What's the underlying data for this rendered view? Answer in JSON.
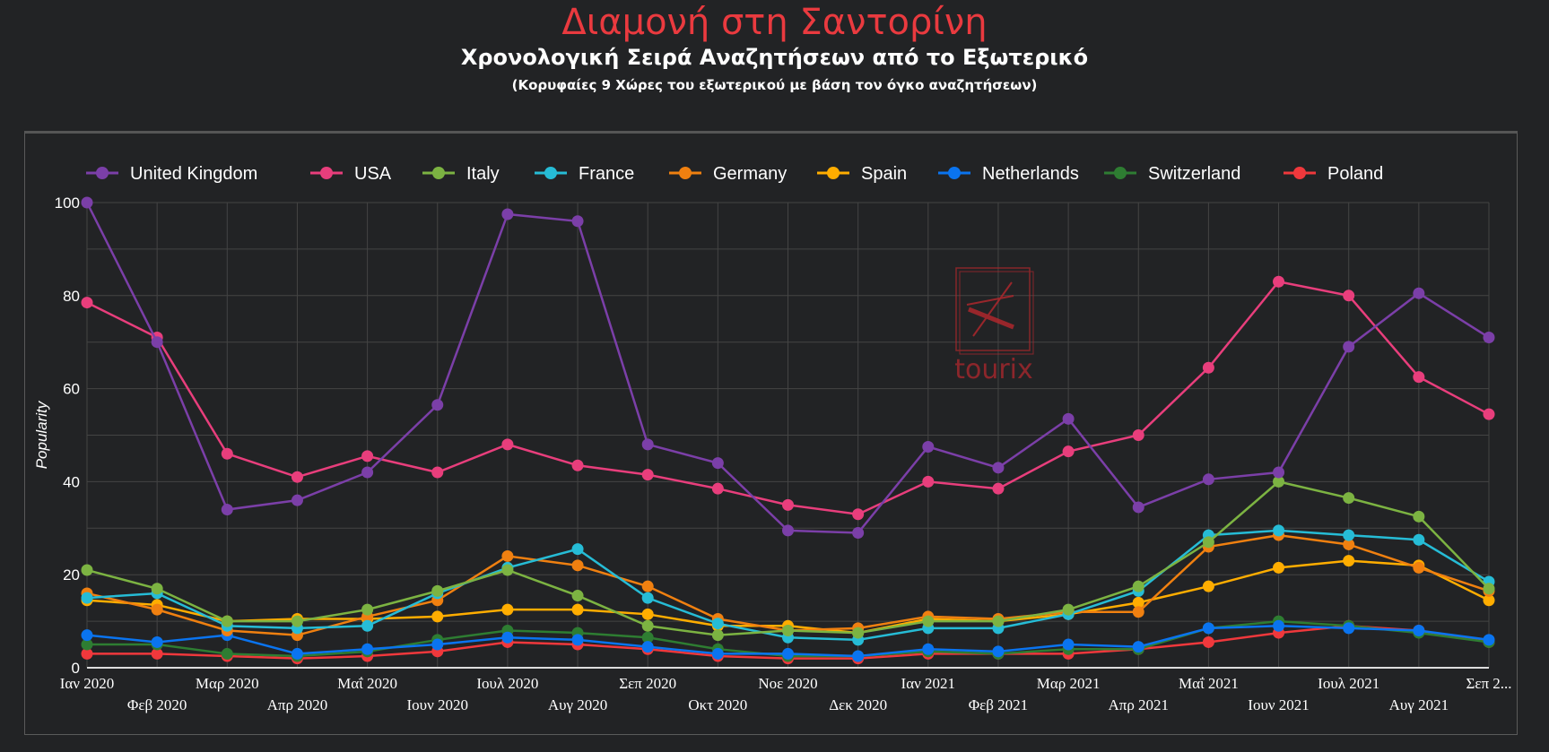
{
  "title": "Διαμονή στη Σαντορίνη",
  "subtitle": "Χρονολογική Σειρά Αναζητήσεων από το Εξωτερικό",
  "note": "(Κορυφαίες 9 Χώρες του εξωτερικού με βάση τον όγκο αναζητήσεων)",
  "watermark": "tourix",
  "chart_data": {
    "type": "line",
    "ylabel": "Popularity",
    "ylim": [
      0,
      100
    ],
    "yticks": [
      0,
      20,
      40,
      60,
      80,
      100
    ],
    "grid": true,
    "legend_position": "top",
    "categories": [
      "Ιαν 2020",
      "Φεβ 2020",
      "Μαρ 2020",
      "Απρ 2020",
      "Μαΐ 2020",
      "Ιουν 2020",
      "Ιουλ 2020",
      "Αυγ 2020",
      "Σεπ 2020",
      "Οκτ 2020",
      "Νοε 2020",
      "Δεκ 2020",
      "Ιαν 2021",
      "Φεβ 2021",
      "Μαρ 2021",
      "Απρ 2021",
      "Μαΐ 2021",
      "Ιουν 2021",
      "Ιουλ 2021",
      "Αυγ 2021",
      "Σεπ 2..."
    ],
    "series": [
      {
        "name": "United Kingdom",
        "color": "#7b3fa8",
        "values": [
          100,
          70,
          34,
          36,
          42,
          56.5,
          97.5,
          96,
          48,
          44,
          29.5,
          29,
          47.5,
          43,
          53.5,
          34.5,
          40.5,
          42,
          69,
          80.5,
          71
        ]
      },
      {
        "name": "USA",
        "color": "#e83e7c",
        "values": [
          78.5,
          71,
          46,
          41,
          45.5,
          42,
          48,
          43.5,
          41.5,
          38.5,
          35,
          33,
          40,
          38.5,
          46.5,
          50,
          64.5,
          83,
          80,
          62.5,
          54.5
        ]
      },
      {
        "name": "Italy",
        "color": "#7cb342",
        "values": [
          21,
          17,
          10,
          10,
          12.5,
          16.5,
          21,
          15.5,
          9,
          7,
          8,
          7.5,
          10,
          10,
          12.5,
          17.5,
          27,
          40,
          36.5,
          32.5,
          17
        ]
      },
      {
        "name": "France",
        "color": "#26bcd6",
        "values": [
          15,
          16,
          9,
          8.5,
          9,
          16,
          21.5,
          25.5,
          15,
          9.5,
          6.5,
          6,
          8.5,
          8.5,
          11.5,
          16.5,
          28.5,
          29.5,
          28.5,
          27.5,
          18.5
        ]
      },
      {
        "name": "Germany",
        "color": "#f08010",
        "values": [
          16,
          12.5,
          8,
          7,
          11,
          14.5,
          24,
          22,
          17.5,
          10.5,
          8,
          8.5,
          11,
          10.5,
          12,
          12,
          26,
          28.5,
          26.5,
          21.5,
          16.5
        ]
      },
      {
        "name": "Spain",
        "color": "#ffad00",
        "values": [
          14.5,
          13.5,
          10,
          10.5,
          10.5,
          11,
          12.5,
          12.5,
          11.5,
          9,
          9,
          7.5,
          10.5,
          10,
          11.5,
          14,
          17.5,
          21.5,
          23,
          22,
          14.5
        ]
      },
      {
        "name": "Netherlands",
        "color": "#0a74f0",
        "values": [
          7,
          5.5,
          7,
          3,
          4,
          5,
          6.5,
          6,
          4.5,
          3,
          3,
          2.5,
          4,
          3.5,
          5,
          4.5,
          8.5,
          9,
          8.5,
          8,
          6
        ]
      },
      {
        "name": "Switzerland",
        "color": "#2e7d32",
        "values": [
          5,
          5,
          3,
          2.5,
          3.5,
          6,
          8,
          7.5,
          6.5,
          4,
          2.5,
          2.5,
          3.5,
          3,
          4,
          4,
          8.5,
          10,
          9,
          7.5,
          5.5
        ]
      },
      {
        "name": "Poland",
        "color": "#f0383c",
        "values": [
          3,
          3,
          2.5,
          2,
          2.5,
          3.5,
          5.5,
          5,
          4,
          2.5,
          2,
          2,
          3,
          3,
          3,
          4,
          5.5,
          7.5,
          9,
          8,
          5.5
        ]
      }
    ]
  }
}
